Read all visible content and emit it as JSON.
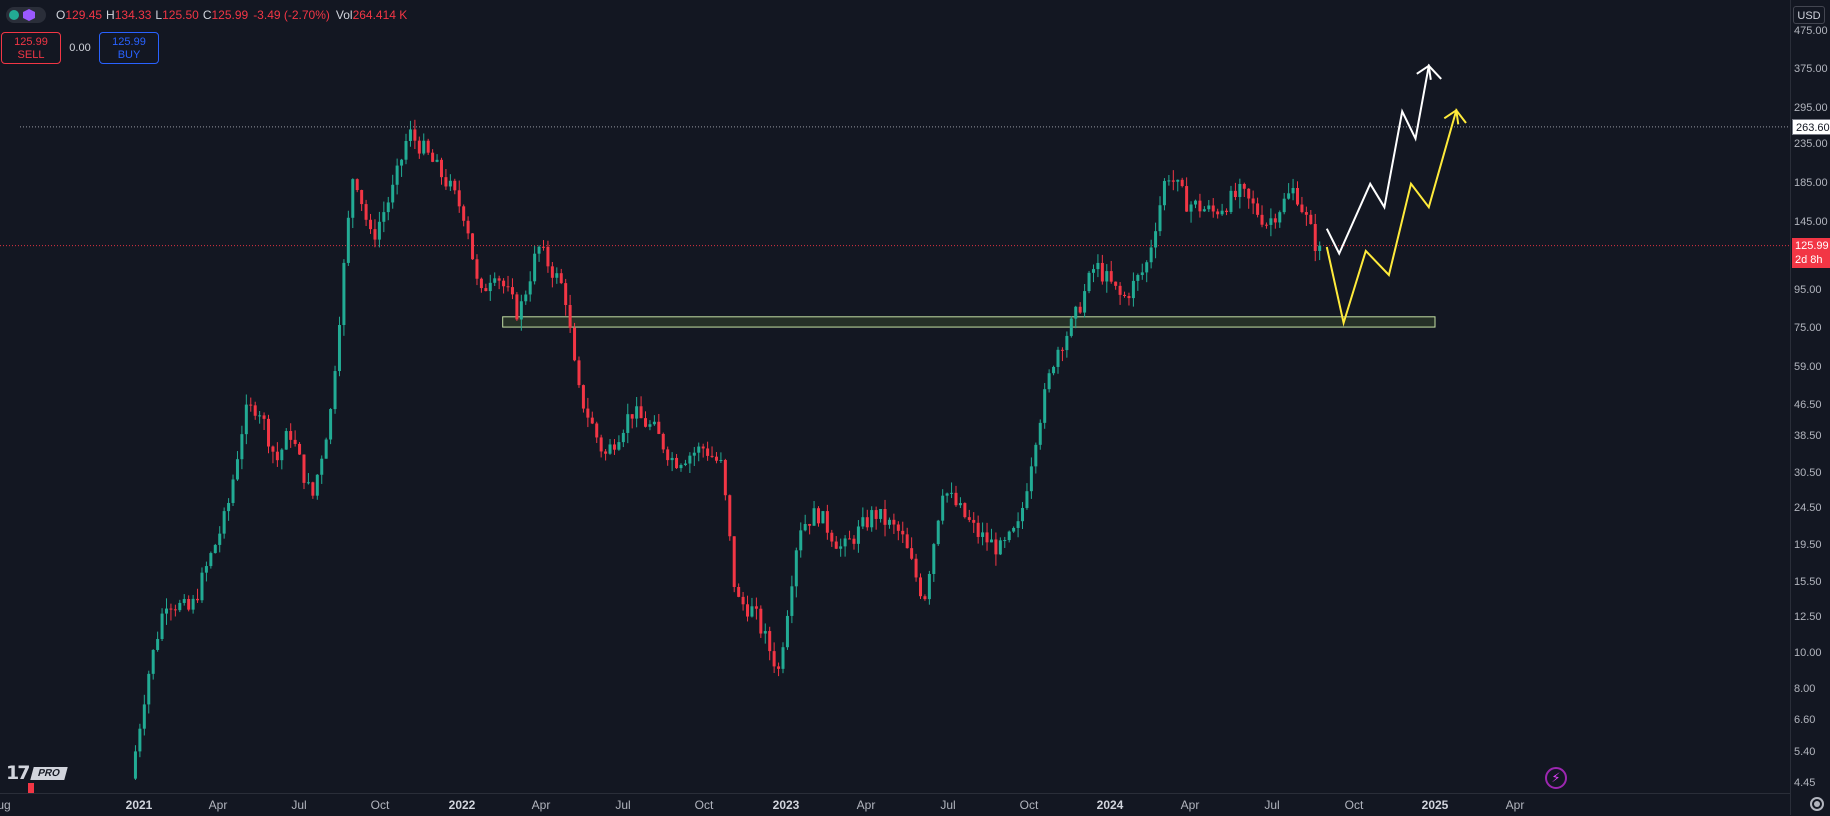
{
  "header": {
    "open_key": "O",
    "open": "129.45",
    "high_key": "H",
    "high": "134.33",
    "low_key": "L",
    "low": "125.50",
    "close_key": "C",
    "close": "125.99",
    "change": "-3.49 (-2.70%)",
    "vol_key": "Vol",
    "vol": "264.414 K"
  },
  "trade": {
    "sell_price": "125.99",
    "sell_label": "SELL",
    "spread": "0.00",
    "buy_price": "125.99",
    "buy_label": "BUY"
  },
  "currency": "USD",
  "logo": {
    "tv": "17",
    "pro": "PRO"
  },
  "price_axis": {
    "labels": [
      "475.00",
      "375.00",
      "295.00",
      "235.00",
      "185.00",
      "145.00",
      "95.00",
      "75.00",
      "59.00",
      "46.50",
      "38.50",
      "30.50",
      "24.50",
      "19.50",
      "15.50",
      "12.50",
      "10.00",
      "8.00",
      "6.60",
      "5.40",
      "4.45"
    ],
    "last_price": "125.99",
    "last_countdown": "2d 8h",
    "high_line_price": "263.60"
  },
  "time_axis": {
    "labels": [
      {
        "text": "ug",
        "year": false
      },
      {
        "text": "2021",
        "year": true
      },
      {
        "text": "Apr",
        "year": false
      },
      {
        "text": "Jul",
        "year": false
      },
      {
        "text": "Oct",
        "year": false
      },
      {
        "text": "2022",
        "year": true
      },
      {
        "text": "Apr",
        "year": false
      },
      {
        "text": "Jul",
        "year": false
      },
      {
        "text": "Oct",
        "year": false
      },
      {
        "text": "2023",
        "year": true
      },
      {
        "text": "Apr",
        "year": false
      },
      {
        "text": "Jul",
        "year": false
      },
      {
        "text": "Oct",
        "year": false
      },
      {
        "text": "2024",
        "year": true
      },
      {
        "text": "Apr",
        "year": false
      },
      {
        "text": "Jul",
        "year": false
      },
      {
        "text": "Oct",
        "year": false
      },
      {
        "text": "2025",
        "year": true
      },
      {
        "text": "Apr",
        "year": false
      }
    ]
  },
  "colors": {
    "up": "#22ab94",
    "down": "#f23645",
    "background": "#131722",
    "support_zone": "#c5e1a5",
    "projection_white": "#ffffff",
    "projection_yellow": "#ffeb3b"
  },
  "chart_data": {
    "type": "candlestick",
    "scale": "log",
    "ylim": [
      4.45,
      475
    ],
    "price_path": [
      {
        "t": "2020-12-28",
        "price": 4.6
      },
      {
        "t": "2021-01-15",
        "price": 8.5
      },
      {
        "t": "2021-02-05",
        "price": 14
      },
      {
        "t": "2021-03-05",
        "price": 13
      },
      {
        "t": "2021-04-15",
        "price": 24
      },
      {
        "t": "2021-05-05",
        "price": 44
      },
      {
        "t": "2021-05-20",
        "price": 47
      },
      {
        "t": "2021-06-10",
        "price": 33
      },
      {
        "t": "2021-06-25",
        "price": 40
      },
      {
        "t": "2021-07-20",
        "price": 26
      },
      {
        "t": "2021-08-10",
        "price": 45
      },
      {
        "t": "2021-08-25",
        "price": 110
      },
      {
        "t": "2021-09-05",
        "price": 205
      },
      {
        "t": "2021-09-25",
        "price": 130
      },
      {
        "t": "2021-10-20",
        "price": 180
      },
      {
        "t": "2021-11-06",
        "price": 255
      },
      {
        "t": "2021-11-25",
        "price": 225
      },
      {
        "t": "2021-12-20",
        "price": 185
      },
      {
        "t": "2022-01-10",
        "price": 150
      },
      {
        "t": "2022-01-25",
        "price": 90
      },
      {
        "t": "2022-02-10",
        "price": 110
      },
      {
        "t": "2022-03-10",
        "price": 82
      },
      {
        "t": "2022-04-01",
        "price": 125
      },
      {
        "t": "2022-05-01",
        "price": 95
      },
      {
        "t": "2022-05-15",
        "price": 52
      },
      {
        "t": "2022-06-15",
        "price": 34
      },
      {
        "t": "2022-07-15",
        "price": 45
      },
      {
        "t": "2022-08-10",
        "price": 40
      },
      {
        "t": "2022-09-01",
        "price": 33
      },
      {
        "t": "2022-10-05",
        "price": 36
      },
      {
        "t": "2022-10-25",
        "price": 32
      },
      {
        "t": "2022-11-10",
        "price": 14
      },
      {
        "t": "2022-11-30",
        "price": 13
      },
      {
        "t": "2022-12-28",
        "price": 9
      },
      {
        "t": "2023-01-20",
        "price": 22
      },
      {
        "t": "2023-02-10",
        "price": 24
      },
      {
        "t": "2023-03-10",
        "price": 19
      },
      {
        "t": "2023-04-15",
        "price": 24
      },
      {
        "t": "2023-05-15",
        "price": 21
      },
      {
        "t": "2023-06-10",
        "price": 14
      },
      {
        "t": "2023-07-01",
        "price": 28
      },
      {
        "t": "2023-08-10",
        "price": 21
      },
      {
        "t": "2023-09-05",
        "price": 19
      },
      {
        "t": "2023-09-25",
        "price": 22
      },
      {
        "t": "2023-10-15",
        "price": 40
      },
      {
        "t": "2023-11-05",
        "price": 65
      },
      {
        "t": "2023-11-25",
        "price": 78
      },
      {
        "t": "2023-12-20",
        "price": 112
      },
      {
        "t": "2024-01-20",
        "price": 90
      },
      {
        "t": "2024-02-15",
        "price": 110
      },
      {
        "t": "2024-03-10",
        "price": 200
      },
      {
        "t": "2024-04-01",
        "price": 165
      },
      {
        "t": "2024-05-01",
        "price": 155
      },
      {
        "t": "2024-06-01",
        "price": 175
      },
      {
        "t": "2024-07-01",
        "price": 145
      },
      {
        "t": "2024-08-01",
        "price": 180
      },
      {
        "t": "2024-08-25",
        "price": 125.99
      }
    ],
    "horizontal_lines": [
      {
        "price": 263.6,
        "style": "dotted"
      },
      {
        "price": 125.99,
        "style": "dotted"
      }
    ],
    "support_zone": {
      "from": "2022-02-15",
      "to": "2025-01-01",
      "low": 76,
      "high": 81
    },
    "projection_white": [
      {
        "t": "2024-09-01",
        "price": 140
      },
      {
        "t": "2024-09-15",
        "price": 120
      },
      {
        "t": "2024-10-20",
        "price": 185
      },
      {
        "t": "2024-11-05",
        "price": 160
      },
      {
        "t": "2024-11-25",
        "price": 290
      },
      {
        "t": "2024-12-10",
        "price": 245
      },
      {
        "t": "2024-12-25",
        "price": 385
      },
      {
        "t": "2025-01-08",
        "price": 355
      }
    ],
    "projection_yellow": [
      {
        "t": "2024-09-01",
        "price": 125
      },
      {
        "t": "2024-09-20",
        "price": 78
      },
      {
        "t": "2024-10-15",
        "price": 122
      },
      {
        "t": "2024-11-10",
        "price": 105
      },
      {
        "t": "2024-12-05",
        "price": 185
      },
      {
        "t": "2024-12-25",
        "price": 160
      },
      {
        "t": "2025-01-25",
        "price": 292
      },
      {
        "t": "2025-02-05",
        "price": 270
      }
    ]
  }
}
